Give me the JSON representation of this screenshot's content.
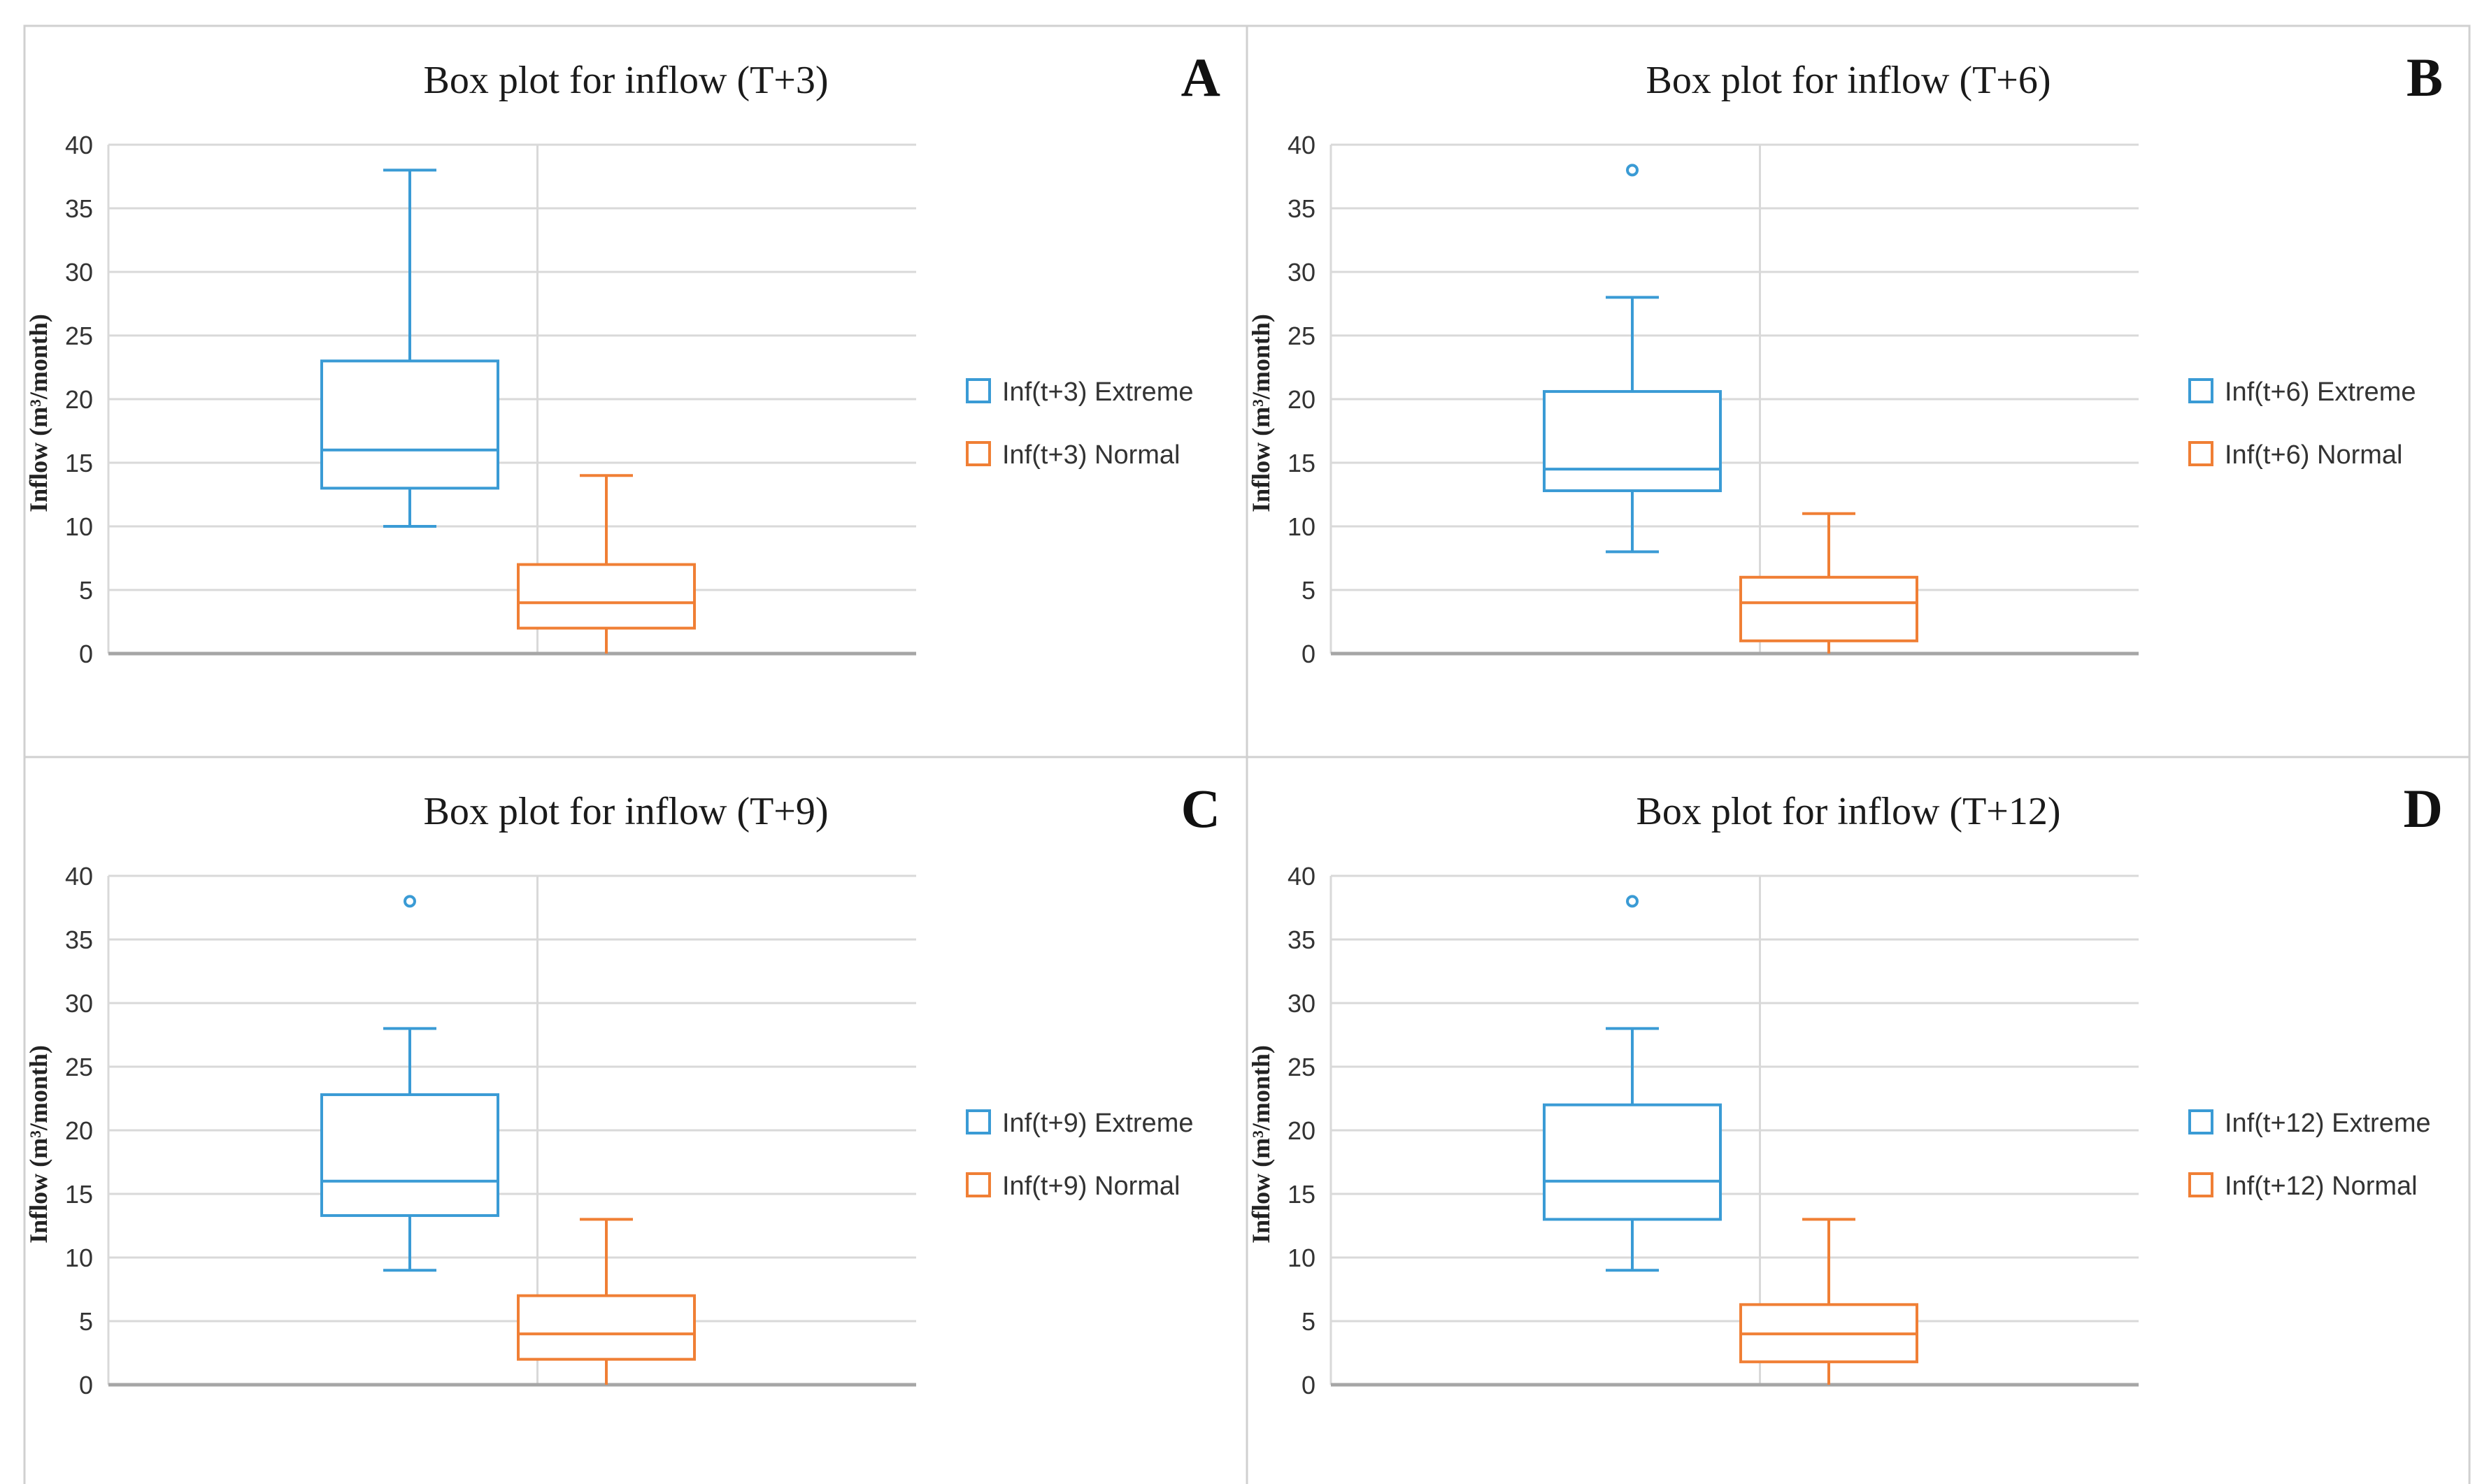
{
  "colors": {
    "extreme": "#3a9bd5",
    "normal": "#f07f35",
    "grid": "#d9d9d9",
    "axis": "#a6a6a6",
    "frame": "#d0d0d0"
  },
  "chart_data": [
    {
      "type": "box",
      "panel": "A",
      "title": "Box plot for inflow (T+3)",
      "ylabel": "Inflow (m³/month)",
      "ylim": [
        0,
        40
      ],
      "yticks": [
        "0",
        "5",
        "10",
        "15",
        "20",
        "25",
        "30",
        "35",
        "40"
      ],
      "series": [
        {
          "name": "Inf(t+3) Extreme",
          "kind": "extreme",
          "min": 10,
          "q1": 13,
          "median": 16,
          "q3": 23,
          "max": 38,
          "outliers": []
        },
        {
          "name": "Inf(t+3) Normal",
          "kind": "normal",
          "min": 0,
          "q1": 2,
          "median": 4,
          "q3": 7,
          "max": 14,
          "outliers": []
        }
      ]
    },
    {
      "type": "box",
      "panel": "B",
      "title": "Box plot for inflow (T+6)",
      "ylabel": "Inflow (m³/month)",
      "ylim": [
        0,
        40
      ],
      "yticks": [
        "0",
        "5",
        "10",
        "15",
        "20",
        "25",
        "30",
        "35",
        "40"
      ],
      "series": [
        {
          "name": "Inf(t+6) Extreme",
          "kind": "extreme",
          "min": 8,
          "q1": 12.8,
          "median": 14.5,
          "q3": 20.6,
          "max": 28,
          "outliers": [
            38
          ]
        },
        {
          "name": "Inf(t+6) Normal",
          "kind": "normal",
          "min": 0,
          "q1": 1,
          "median": 4,
          "q3": 6,
          "max": 11,
          "outliers": []
        }
      ]
    },
    {
      "type": "box",
      "panel": "C",
      "title": "Box plot for inflow (T+9)",
      "ylabel": "Inflow (m³/month)",
      "ylim": [
        0,
        40
      ],
      "yticks": [
        "0",
        "5",
        "10",
        "15",
        "20",
        "25",
        "30",
        "35",
        "40"
      ],
      "series": [
        {
          "name": "Inf(t+9) Extreme",
          "kind": "extreme",
          "min": 9,
          "q1": 13.3,
          "median": 16,
          "q3": 22.8,
          "max": 28,
          "outliers": [
            38
          ]
        },
        {
          "name": "Inf(t+9) Normal",
          "kind": "normal",
          "min": 0,
          "q1": 2,
          "median": 4,
          "q3": 7,
          "max": 13,
          "outliers": []
        }
      ]
    },
    {
      "type": "box",
      "panel": "D",
      "title": "Box plot for inflow (T+12)",
      "ylabel": "Inflow (m³/month)",
      "ylim": [
        0,
        40
      ],
      "yticks": [
        "0",
        "5",
        "10",
        "15",
        "20",
        "25",
        "30",
        "35",
        "40"
      ],
      "series": [
        {
          "name": "Inf(t+12) Extreme",
          "kind": "extreme",
          "min": 9,
          "q1": 13,
          "median": 16,
          "q3": 22,
          "max": 28,
          "outliers": [
            38
          ]
        },
        {
          "name": "Inf(t+12) Normal",
          "kind": "normal",
          "min": 0,
          "q1": 1.8,
          "median": 4,
          "q3": 6.3,
          "max": 13,
          "outliers": []
        }
      ]
    }
  ]
}
